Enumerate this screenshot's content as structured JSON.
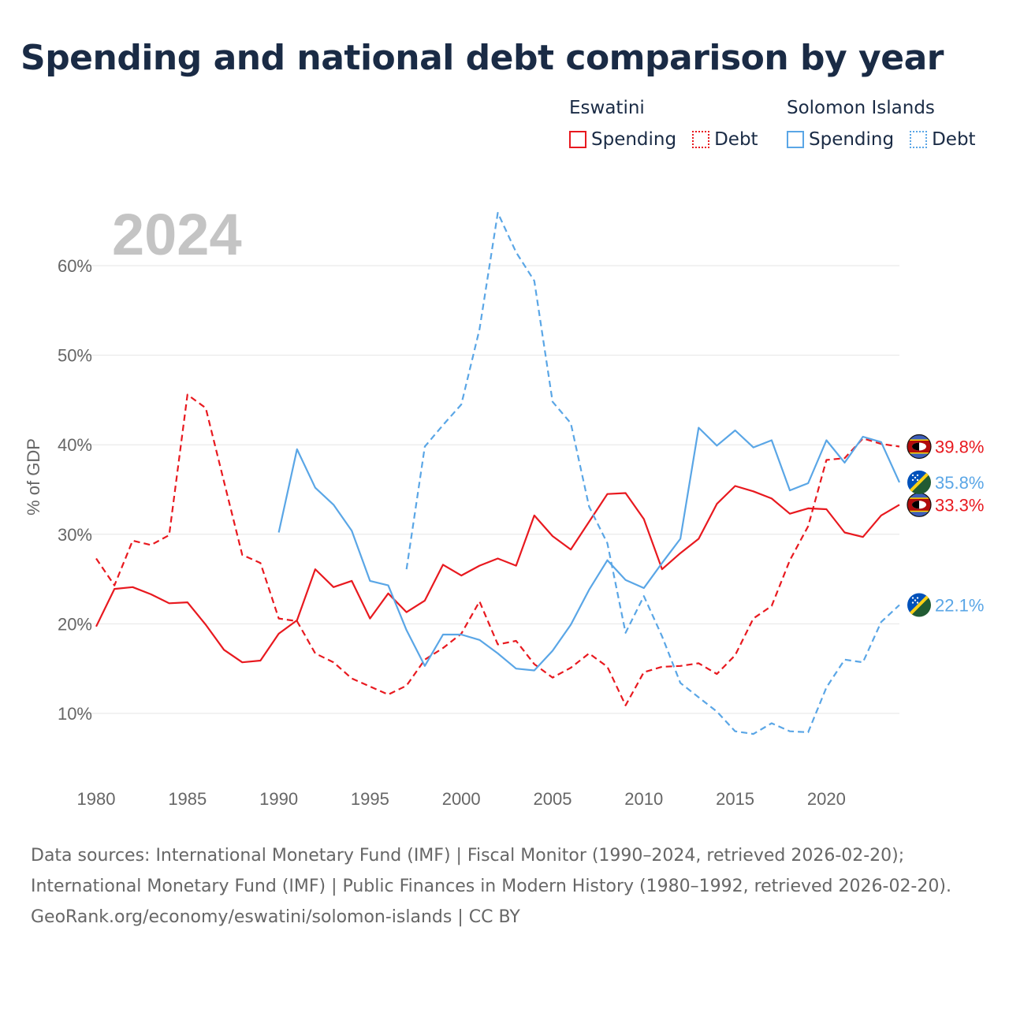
{
  "title": "Spending and national debt comparison by year",
  "legend": {
    "groups": [
      {
        "name": "Eswatini",
        "color": "#e8191f",
        "items": [
          {
            "label": "Spending",
            "style": "solid"
          },
          {
            "label": "Debt",
            "style": "dotted"
          }
        ]
      },
      {
        "name": "Solomon Islands",
        "color": "#5aa6e6",
        "items": [
          {
            "label": "Spending",
            "style": "solid"
          },
          {
            "label": "Debt",
            "style": "dotted"
          }
        ]
      }
    ]
  },
  "year_watermark": "2024",
  "footer": {
    "sources_line": "Data sources: International Monetary Fund (IMF) | Fiscal Monitor (1990–2024, retrieved 2026-02-20); International Monetary Fund (IMF) | Public Finances in Modern History (1980–1992, retrieved 2026-02-20).",
    "credit": "GeoRank.org/economy/eswatini/solomon-islands | CC BY"
  },
  "chart_data": {
    "type": "line",
    "ylabel": "% of GDP",
    "xlabel": "",
    "xlim": [
      1980,
      2024
    ],
    "ylim": [
      3,
      68
    ],
    "x_ticks": [
      1980,
      1985,
      1990,
      1995,
      2000,
      2005,
      2010,
      2015,
      2020
    ],
    "y_ticks": [
      10,
      20,
      30,
      40,
      50,
      60
    ],
    "y_tick_labels": [
      "10%",
      "20%",
      "30%",
      "40%",
      "50%",
      "60%"
    ],
    "grid": true,
    "series": [
      {
        "name": "Eswatini Spending",
        "country": "Eswatini",
        "color": "#e8191f",
        "dash": "solid",
        "start_year": 1980,
        "values": [
          19.7,
          23.9,
          24.1,
          23.3,
          22.3,
          22.4,
          19.9,
          17.1,
          15.7,
          15.9,
          18.9,
          20.4,
          26.1,
          24.1,
          24.8,
          20.6,
          23.4,
          21.3,
          22.6,
          26.6,
          25.4,
          26.5,
          27.3,
          26.5,
          32.1,
          29.8,
          28.3,
          31.4,
          34.5,
          34.6,
          31.7,
          26.1,
          27.9,
          29.5,
          33.4,
          35.4,
          34.8,
          34.0,
          32.3,
          32.9,
          32.8,
          30.2,
          29.7,
          32.1,
          33.3
        ],
        "end_label": "33.3%"
      },
      {
        "name": "Eswatini Debt",
        "country": "Eswatini",
        "color": "#e8191f",
        "dash": "dashed",
        "start_year": 1980,
        "values": [
          27.3,
          24.3,
          29.3,
          28.8,
          29.9,
          45.6,
          44.1,
          35.9,
          27.7,
          26.8,
          20.6,
          20.3,
          16.7,
          15.7,
          13.9,
          13.0,
          12.1,
          13.1,
          16.0,
          17.3,
          18.9,
          22.5,
          17.7,
          18.1,
          15.5,
          14.0,
          15.1,
          16.7,
          15.2,
          10.9,
          14.6,
          15.2,
          15.3,
          15.6,
          14.4,
          16.5,
          20.6,
          22.0,
          27.1,
          30.9,
          38.3,
          38.5,
          40.7,
          40.1,
          39.8
        ],
        "end_label": "39.8%"
      },
      {
        "name": "Solomon Islands Spending",
        "country": "Solomon Islands",
        "color": "#5aa6e6",
        "dash": "solid",
        "start_year": 1990,
        "values": [
          30.2,
          39.5,
          35.2,
          33.3,
          30.4,
          24.8,
          24.3,
          19.3,
          15.3,
          18.8,
          18.8,
          18.2,
          16.7,
          15.0,
          14.8,
          17.0,
          19.9,
          23.8,
          27.1,
          24.9,
          24.0,
          26.8,
          29.5,
          41.9,
          39.9,
          41.6,
          39.7,
          40.5,
          34.9,
          35.7,
          40.5,
          38.0,
          40.9,
          40.3,
          35.8
        ],
        "end_label": "35.8%"
      },
      {
        "name": "Solomon Islands Debt",
        "country": "Solomon Islands",
        "color": "#5aa6e6",
        "dash": "dashed",
        "start_year": 1997,
        "values": [
          26.1,
          39.8,
          42.2,
          44.5,
          52.9,
          65.9,
          61.5,
          58.3,
          44.8,
          42.4,
          33.1,
          29.0,
          19.0,
          23.1,
          18.6,
          13.4,
          11.8,
          10.2,
          8.0,
          7.7,
          8.9,
          8.0,
          7.9,
          12.9,
          16.0,
          15.7,
          20.2,
          22.1
        ],
        "end_label": "22.1%"
      }
    ]
  }
}
